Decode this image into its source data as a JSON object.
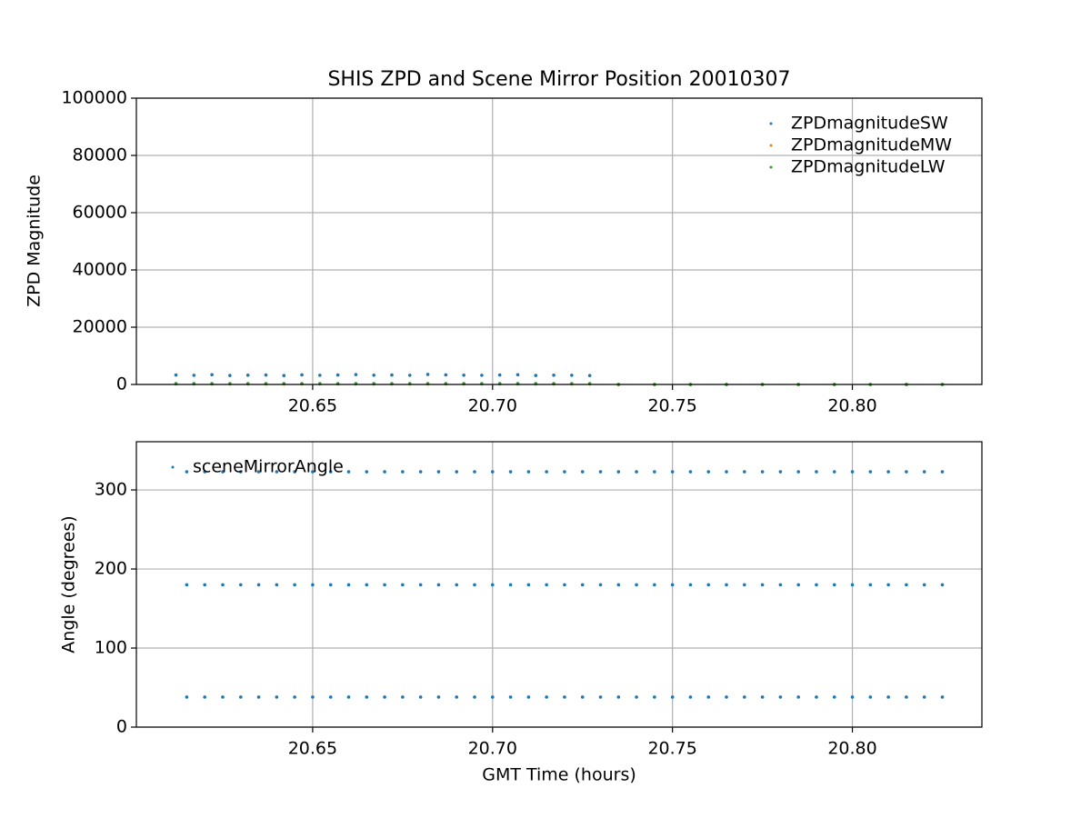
{
  "chart_data": [
    {
      "type": "scatter",
      "title": "SHIS ZPD and Scene Mirror Position 20010307",
      "ylabel": "ZPD Magnitude",
      "xlim": [
        20.601,
        20.836
      ],
      "ylim": [
        0,
        100000
      ],
      "xticks": [
        20.65,
        {
          "value": 20.7,
          "label": "20.70"
        },
        20.75,
        {
          "value": 20.8,
          "label": "20.80"
        }
      ],
      "yticks": [
        0,
        20000,
        40000,
        60000,
        80000,
        100000
      ],
      "grid": true,
      "legend": "upper right",
      "series": [
        {
          "name": "ZPDmagnitudeSW",
          "color": "#1f77b4",
          "x": [
            20.612,
            20.617,
            20.622,
            20.627,
            20.632,
            20.637,
            20.642,
            20.647,
            20.652,
            20.657,
            20.662,
            20.667,
            20.672,
            20.677,
            20.682,
            20.687,
            20.692,
            20.697,
            20.702,
            20.707,
            20.712,
            20.717,
            20.722,
            20.727,
            20.735,
            20.745,
            20.755,
            20.765,
            20.775,
            20.785,
            20.795,
            20.805,
            20.815,
            20.825
          ],
          "values": [
            3300,
            3200,
            3400,
            3150,
            3250,
            3300,
            3100,
            3350,
            3200,
            3300,
            3450,
            3250,
            3300,
            3200,
            3500,
            3350,
            3250,
            3200,
            3300,
            3400,
            3150,
            3250,
            3200,
            3100,
            0,
            0,
            0,
            0,
            0,
            0,
            0,
            0,
            0,
            0
          ]
        },
        {
          "name": "ZPDmagnitudeMW",
          "color": "#ff7f0e",
          "x": [
            20.612,
            20.617,
            20.622,
            20.627,
            20.632,
            20.637,
            20.642,
            20.647,
            20.652,
            20.657,
            20.662,
            20.667,
            20.672,
            20.677,
            20.682,
            20.687,
            20.692,
            20.697,
            20.702,
            20.707,
            20.712,
            20.717,
            20.722,
            20.727,
            20.735,
            20.745,
            20.755,
            20.765,
            20.775,
            20.785,
            20.795,
            20.805,
            20.815,
            20.825
          ],
          "values": [
            150,
            150,
            150,
            150,
            150,
            150,
            150,
            150,
            150,
            150,
            150,
            150,
            150,
            150,
            150,
            150,
            150,
            150,
            150,
            150,
            150,
            150,
            150,
            150,
            0,
            0,
            0,
            0,
            0,
            0,
            0,
            0,
            0,
            0
          ]
        },
        {
          "name": "ZPDmagnitudeLW",
          "color": "#2ca02c",
          "x": [
            20.612,
            20.617,
            20.622,
            20.627,
            20.632,
            20.637,
            20.642,
            20.647,
            20.652,
            20.657,
            20.662,
            20.667,
            20.672,
            20.677,
            20.682,
            20.687,
            20.692,
            20.697,
            20.702,
            20.707,
            20.712,
            20.717,
            20.722,
            20.727,
            20.735,
            20.745,
            20.755,
            20.765,
            20.775,
            20.785,
            20.795,
            20.805,
            20.815,
            20.825
          ],
          "values": [
            300,
            300,
            300,
            300,
            300,
            300,
            300,
            300,
            300,
            300,
            300,
            300,
            300,
            300,
            300,
            300,
            300,
            300,
            300,
            300,
            300,
            300,
            300,
            300,
            0,
            0,
            0,
            0,
            0,
            0,
            0,
            0,
            0,
            0
          ]
        }
      ]
    },
    {
      "type": "scatter",
      "xlabel": "GMT Time (hours)",
      "ylabel": "Angle (degrees)",
      "xlim": [
        20.601,
        20.836
      ],
      "ylim": [
        0,
        361
      ],
      "xticks": [
        20.65,
        {
          "value": 20.7,
          "label": "20.70"
        },
        20.75,
        {
          "value": 20.8,
          "label": "20.80"
        }
      ],
      "yticks": [
        0,
        100,
        200,
        300
      ],
      "grid": true,
      "legend": "upper left",
      "series": [
        {
          "name": "sceneMirrorAngle",
          "color": "#1f77b4",
          "x": [
            20.615,
            20.62,
            20.625,
            20.63,
            20.635,
            20.64,
            20.645,
            20.65,
            20.655,
            20.66,
            20.665,
            20.67,
            20.675,
            20.68,
            20.685,
            20.69,
            20.695,
            20.7,
            20.705,
            20.71,
            20.715,
            20.72,
            20.725,
            20.73,
            20.735,
            20.74,
            20.745,
            20.75,
            20.755,
            20.76,
            20.765,
            20.77,
            20.775,
            20.78,
            20.785,
            20.79,
            20.795,
            20.8,
            20.805,
            20.81,
            20.815,
            20.82,
            20.825,
            20.615,
            20.62,
            20.625,
            20.63,
            20.635,
            20.64,
            20.645,
            20.65,
            20.655,
            20.66,
            20.665,
            20.67,
            20.675,
            20.68,
            20.685,
            20.69,
            20.695,
            20.7,
            20.705,
            20.71,
            20.715,
            20.72,
            20.725,
            20.73,
            20.735,
            20.74,
            20.745,
            20.75,
            20.755,
            20.76,
            20.765,
            20.77,
            20.775,
            20.78,
            20.785,
            20.79,
            20.795,
            20.8,
            20.805,
            20.81,
            20.815,
            20.82,
            20.825,
            20.615,
            20.62,
            20.625,
            20.63,
            20.635,
            20.64,
            20.645,
            20.65,
            20.655,
            20.66,
            20.665,
            20.67,
            20.675,
            20.68,
            20.685,
            20.69,
            20.695,
            20.7,
            20.705,
            20.71,
            20.715,
            20.72,
            20.725,
            20.73,
            20.735,
            20.74,
            20.745,
            20.75,
            20.755,
            20.76,
            20.765,
            20.77,
            20.775,
            20.78,
            20.785,
            20.79,
            20.795,
            20.8,
            20.805,
            20.81,
            20.815,
            20.82,
            20.825
          ],
          "values": [
            38,
            38,
            38,
            38,
            38,
            38,
            38,
            38,
            38,
            38,
            38,
            38,
            38,
            38,
            38,
            38,
            38,
            38,
            38,
            38,
            38,
            38,
            38,
            38,
            38,
            38,
            38,
            38,
            38,
            38,
            38,
            38,
            38,
            38,
            38,
            38,
            38,
            38,
            38,
            38,
            38,
            38,
            38,
            180,
            180,
            180,
            180,
            180,
            180,
            180,
            180,
            180,
            180,
            180,
            180,
            180,
            180,
            180,
            180,
            180,
            180,
            180,
            180,
            180,
            180,
            180,
            180,
            180,
            180,
            180,
            180,
            180,
            180,
            180,
            180,
            180,
            180,
            180,
            180,
            180,
            180,
            180,
            180,
            180,
            180,
            180,
            323,
            323,
            323,
            323,
            323,
            323,
            323,
            323,
            323,
            323,
            323,
            323,
            323,
            323,
            323,
            323,
            323,
            323,
            323,
            323,
            323,
            323,
            323,
            323,
            323,
            323,
            323,
            323,
            323,
            323,
            323,
            323,
            323,
            323,
            323,
            323,
            323,
            323,
            323,
            323,
            323,
            323,
            323
          ]
        }
      ]
    }
  ]
}
